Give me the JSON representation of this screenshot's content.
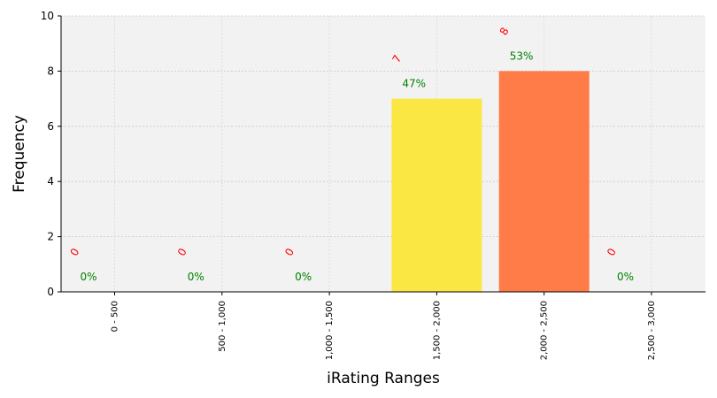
{
  "chart_data": {
    "type": "bar",
    "categories": [
      "0 - 500",
      "500 - 1,000",
      "1,000 - 1,500",
      "1,500 - 2,000",
      "2,000 - 2,500",
      "2,500 - 3,000"
    ],
    "values": [
      0,
      0,
      0,
      7,
      8,
      0
    ],
    "count_labels": [
      "0",
      "0",
      "0",
      "7",
      "8",
      "0"
    ],
    "percent_labels": [
      "0%",
      "0%",
      "0%",
      "47%",
      "53%",
      "0%"
    ],
    "bar_colors": [
      "#3b4cc0",
      "#6a8be6",
      "#9fc2f5",
      "#fbe744",
      "#ff7b48",
      "#d6282f"
    ],
    "xlabel": "iRating Ranges",
    "ylabel": "Frequency",
    "ylim": [
      0,
      10
    ],
    "yticks": [
      "0",
      "2",
      "4",
      "6",
      "8",
      "10"
    ],
    "ytick_values": [
      0,
      2,
      4,
      6,
      8,
      10
    ],
    "grid": true,
    "plot_background": "#f2f2f2",
    "count_label_color": "#ff0000",
    "percent_label_color": "#008000"
  }
}
